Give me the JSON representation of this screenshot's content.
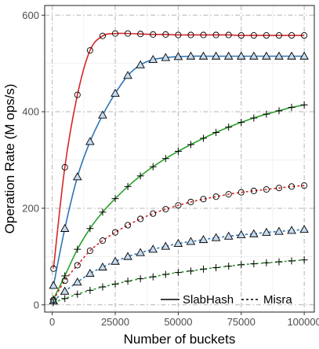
{
  "chart_data": {
    "type": "line",
    "xlabel": "Number of buckets",
    "ylabel": "Operation Rate (M ops/s)",
    "xlim": [
      -3000,
      104000
    ],
    "ylim": [
      -15,
      620
    ],
    "x_ticks": [
      0,
      25000,
      50000,
      75000,
      100000
    ],
    "y_ticks": [
      0,
      200,
      400,
      600
    ],
    "grid": true,
    "legend": {
      "position": "bottom-right",
      "entries": [
        {
          "label": "SlabHash",
          "linestyle": "solid"
        },
        {
          "label": "Misra",
          "linestyle": "dashed"
        }
      ]
    },
    "series": [
      {
        "color": "#d62728",
        "linestyle": "solid",
        "marker": "circle",
        "points": [
          [
            500,
            75
          ],
          [
            5000,
            285
          ],
          [
            10000,
            435
          ],
          [
            15000,
            527
          ],
          [
            20000,
            557
          ],
          [
            25000,
            562
          ],
          [
            30000,
            562
          ],
          [
            35000,
            561
          ],
          [
            40000,
            560
          ],
          [
            45000,
            560
          ],
          [
            50000,
            559
          ],
          [
            55000,
            559
          ],
          [
            60000,
            559
          ],
          [
            65000,
            559
          ],
          [
            70000,
            559
          ],
          [
            75000,
            558
          ],
          [
            80000,
            558
          ],
          [
            85000,
            558
          ],
          [
            90000,
            558
          ],
          [
            95000,
            558
          ],
          [
            100000,
            558
          ]
        ]
      },
      {
        "color": "#2e75b6",
        "linestyle": "solid",
        "marker": "triangle",
        "points": [
          [
            500,
            40
          ],
          [
            5000,
            158
          ],
          [
            10000,
            265
          ],
          [
            15000,
            338
          ],
          [
            20000,
            393
          ],
          [
            25000,
            438
          ],
          [
            30000,
            475
          ],
          [
            35000,
            497
          ],
          [
            40000,
            508
          ],
          [
            45000,
            512
          ],
          [
            50000,
            514
          ],
          [
            55000,
            515
          ],
          [
            60000,
            515
          ],
          [
            65000,
            515
          ],
          [
            70000,
            515
          ],
          [
            75000,
            515
          ],
          [
            80000,
            515
          ],
          [
            85000,
            515
          ],
          [
            90000,
            515
          ],
          [
            95000,
            515
          ],
          [
            100000,
            515
          ]
        ]
      },
      {
        "color": "#2ca02c",
        "linestyle": "solid",
        "marker": "plus",
        "points": [
          [
            500,
            12
          ],
          [
            5000,
            60
          ],
          [
            10000,
            115
          ],
          [
            15000,
            158
          ],
          [
            20000,
            192
          ],
          [
            25000,
            220
          ],
          [
            30000,
            245
          ],
          [
            35000,
            267
          ],
          [
            40000,
            286
          ],
          [
            45000,
            303
          ],
          [
            50000,
            318
          ],
          [
            55000,
            332
          ],
          [
            60000,
            345
          ],
          [
            65000,
            357
          ],
          [
            70000,
            368
          ],
          [
            75000,
            378
          ],
          [
            80000,
            387
          ],
          [
            85000,
            395
          ],
          [
            90000,
            402
          ],
          [
            95000,
            409
          ],
          [
            100000,
            414
          ]
        ]
      },
      {
        "color": "#d62728",
        "linestyle": "dashed",
        "marker": "circle",
        "points": [
          [
            500,
            10
          ],
          [
            5000,
            50
          ],
          [
            10000,
            82
          ],
          [
            15000,
            112
          ],
          [
            20000,
            133
          ],
          [
            25000,
            150
          ],
          [
            30000,
            165
          ],
          [
            35000,
            178
          ],
          [
            40000,
            189
          ],
          [
            45000,
            198
          ],
          [
            50000,
            206
          ],
          [
            55000,
            213
          ],
          [
            60000,
            219
          ],
          [
            65000,
            224
          ],
          [
            70000,
            229
          ],
          [
            75000,
            233
          ],
          [
            80000,
            236
          ],
          [
            85000,
            239
          ],
          [
            90000,
            242
          ],
          [
            95000,
            245
          ],
          [
            100000,
            247
          ]
        ]
      },
      {
        "color": "#2e75b6",
        "linestyle": "dashed",
        "marker": "triangle",
        "points": [
          [
            500,
            8
          ],
          [
            5000,
            28
          ],
          [
            10000,
            47
          ],
          [
            15000,
            65
          ],
          [
            20000,
            78
          ],
          [
            25000,
            90
          ],
          [
            30000,
            100
          ],
          [
            35000,
            108
          ],
          [
            40000,
            115
          ],
          [
            45000,
            121
          ],
          [
            50000,
            127
          ],
          [
            55000,
            131
          ],
          [
            60000,
            135
          ],
          [
            65000,
            139
          ],
          [
            70000,
            142
          ],
          [
            75000,
            145
          ],
          [
            80000,
            147
          ],
          [
            85000,
            150
          ],
          [
            90000,
            152
          ],
          [
            95000,
            154
          ],
          [
            100000,
            156
          ]
        ]
      },
      {
        "color": "#2ca02c",
        "linestyle": "dashed",
        "marker": "plus",
        "points": [
          [
            500,
            5
          ],
          [
            5000,
            13
          ],
          [
            10000,
            22
          ],
          [
            15000,
            30
          ],
          [
            20000,
            37
          ],
          [
            25000,
            43
          ],
          [
            30000,
            49
          ],
          [
            35000,
            54
          ],
          [
            40000,
            58
          ],
          [
            45000,
            63
          ],
          [
            50000,
            67
          ],
          [
            55000,
            70
          ],
          [
            60000,
            74
          ],
          [
            65000,
            77
          ],
          [
            70000,
            80
          ],
          [
            75000,
            83
          ],
          [
            80000,
            85
          ],
          [
            85000,
            87
          ],
          [
            90000,
            89
          ],
          [
            95000,
            91
          ],
          [
            100000,
            93
          ]
        ]
      }
    ]
  }
}
